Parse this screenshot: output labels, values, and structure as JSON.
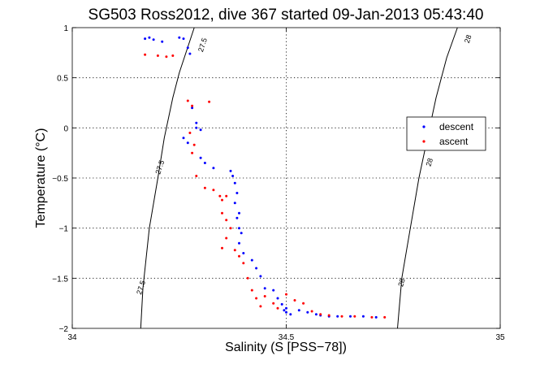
{
  "chart_data": {
    "type": "scatter",
    "title": "SG503 Ross2012, dive 367 started 09-Jan-2013 05:43:40",
    "xlabel": "Salinity (S [PSS−78])",
    "ylabel": "Temperature (°C)",
    "xlim": [
      34,
      35
    ],
    "ylim": [
      -2,
      1
    ],
    "xticks": [
      34,
      34.5,
      35
    ],
    "xtick_labels": [
      "34",
      "34.5",
      "35"
    ],
    "yticks": [
      -2,
      -1.5,
      -1,
      -0.5,
      0,
      0.5,
      1
    ],
    "ytick_labels": [
      "−2",
      "−1.5",
      "−1",
      "−0.5",
      "0",
      "0.5",
      "1"
    ],
    "grid": true,
    "legend_position": "right",
    "colors": {
      "descent": "#0000ff",
      "ascent": "#ff0000",
      "contour": "#000000"
    },
    "contours": [
      {
        "level": "27.5",
        "points": [
          [
            34.16,
            -2
          ],
          [
            34.165,
            -1.6
          ],
          [
            34.18,
            -1.0
          ],
          [
            34.2,
            -0.5
          ],
          [
            34.215,
            -0.1
          ],
          [
            34.235,
            0.3
          ],
          [
            34.25,
            0.55
          ],
          [
            34.285,
            1.0
          ]
        ],
        "label_positions": [
          [
            34.166,
            -1.6
          ],
          [
            34.21,
            -0.4
          ],
          [
            34.31,
            0.82
          ]
        ]
      },
      {
        "level": "28",
        "points": [
          [
            34.76,
            -2
          ],
          [
            34.77,
            -1.5
          ],
          [
            34.79,
            -1.0
          ],
          [
            34.81,
            -0.5
          ],
          [
            34.83,
            -0.1
          ],
          [
            34.85,
            0.3
          ],
          [
            34.875,
            0.7
          ],
          [
            34.9,
            1.0
          ]
        ],
        "label_positions": [
          [
            34.775,
            -1.55
          ],
          [
            34.84,
            -0.35
          ],
          [
            34.93,
            0.88
          ]
        ]
      }
    ],
    "series": [
      {
        "name": "descent",
        "marker": ".",
        "points": [
          [
            34.17,
            0.89
          ],
          [
            34.18,
            0.9
          ],
          [
            34.19,
            0.88
          ],
          [
            34.21,
            0.86
          ],
          [
            34.25,
            0.9
          ],
          [
            34.26,
            0.89
          ],
          [
            34.27,
            0.8
          ],
          [
            34.275,
            0.74
          ],
          [
            34.28,
            0.2
          ],
          [
            34.29,
            0.05
          ],
          [
            34.29,
            0.0
          ],
          [
            34.3,
            -0.02
          ],
          [
            34.26,
            -0.1
          ],
          [
            34.27,
            -0.15
          ],
          [
            34.3,
            -0.3
          ],
          [
            34.31,
            -0.35
          ],
          [
            34.33,
            -0.4
          ],
          [
            34.37,
            -0.43
          ],
          [
            34.375,
            -0.48
          ],
          [
            34.38,
            -0.55
          ],
          [
            34.385,
            -0.65
          ],
          [
            34.38,
            -0.75
          ],
          [
            34.39,
            -0.85
          ],
          [
            34.385,
            -0.9
          ],
          [
            34.39,
            -1.0
          ],
          [
            34.395,
            -1.05
          ],
          [
            34.39,
            -1.15
          ],
          [
            34.4,
            -1.25
          ],
          [
            34.42,
            -1.32
          ],
          [
            34.43,
            -1.4
          ],
          [
            34.44,
            -1.48
          ],
          [
            34.45,
            -1.6
          ],
          [
            34.47,
            -1.62
          ],
          [
            34.48,
            -1.7
          ],
          [
            34.49,
            -1.76
          ],
          [
            34.495,
            -1.82
          ],
          [
            34.5,
            -1.84
          ],
          [
            34.5,
            -1.8
          ],
          [
            34.51,
            -1.86
          ],
          [
            34.53,
            -1.82
          ],
          [
            34.55,
            -1.84
          ],
          [
            34.57,
            -1.86
          ],
          [
            34.58,
            -1.87
          ],
          [
            34.6,
            -1.88
          ],
          [
            34.62,
            -1.88
          ],
          [
            34.65,
            -1.88
          ],
          [
            34.68,
            -1.88
          ],
          [
            34.71,
            -1.89
          ]
        ]
      },
      {
        "name": "ascent",
        "marker": ".",
        "points": [
          [
            34.17,
            0.73
          ],
          [
            34.2,
            0.72
          ],
          [
            34.22,
            0.71
          ],
          [
            34.235,
            0.72
          ],
          [
            34.27,
            0.27
          ],
          [
            34.28,
            0.22
          ],
          [
            34.32,
            0.26
          ],
          [
            34.275,
            -0.05
          ],
          [
            34.285,
            -0.17
          ],
          [
            34.28,
            -0.25
          ],
          [
            34.29,
            -0.48
          ],
          [
            34.31,
            -0.6
          ],
          [
            34.33,
            -0.62
          ],
          [
            34.345,
            -0.68
          ],
          [
            34.35,
            -0.72
          ],
          [
            34.36,
            -0.68
          ],
          [
            34.35,
            -0.85
          ],
          [
            34.36,
            -0.92
          ],
          [
            34.37,
            -1.0
          ],
          [
            34.36,
            -1.1
          ],
          [
            34.35,
            -1.2
          ],
          [
            34.38,
            -1.22
          ],
          [
            34.39,
            -1.28
          ],
          [
            34.4,
            -1.35
          ],
          [
            34.41,
            -1.5
          ],
          [
            34.42,
            -1.62
          ],
          [
            34.43,
            -1.7
          ],
          [
            34.44,
            -1.78
          ],
          [
            34.45,
            -1.68
          ],
          [
            34.47,
            -1.75
          ],
          [
            34.48,
            -1.8
          ],
          [
            34.5,
            -1.66
          ],
          [
            34.52,
            -1.72
          ],
          [
            34.54,
            -1.75
          ],
          [
            34.56,
            -1.83
          ],
          [
            34.58,
            -1.86
          ],
          [
            34.6,
            -1.87
          ],
          [
            34.63,
            -1.88
          ],
          [
            34.66,
            -1.88
          ],
          [
            34.7,
            -1.89
          ],
          [
            34.73,
            -1.89
          ]
        ]
      }
    ]
  }
}
